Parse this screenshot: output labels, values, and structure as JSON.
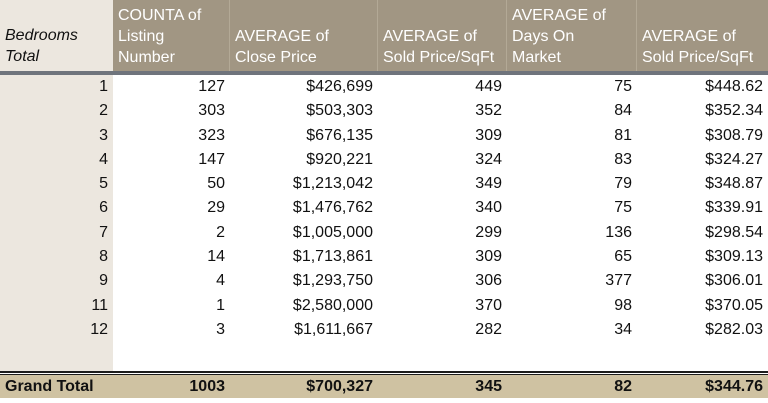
{
  "header": {
    "row_label": [
      "Bedrooms",
      "Total"
    ],
    "columns": [
      [
        "COUNTA of",
        "Listing",
        "Number"
      ],
      [
        "AVERAGE of",
        "Close Price"
      ],
      [
        "AVERAGE of",
        "Sold Price/SqFt"
      ],
      [
        "AVERAGE of",
        "Days On",
        "Market"
      ],
      [
        "AVERAGE of",
        "Sold Price/SqFt"
      ]
    ]
  },
  "rows": [
    [
      "1",
      "127",
      "$426,699",
      "449",
      "75",
      "$448.62"
    ],
    [
      "2",
      "303",
      "$503,303",
      "352",
      "84",
      "$352.34"
    ],
    [
      "3",
      "323",
      "$676,135",
      "309",
      "81",
      "$308.79"
    ],
    [
      "4",
      "147",
      "$920,221",
      "324",
      "83",
      "$324.27"
    ],
    [
      "5",
      "50",
      "$1,213,042",
      "349",
      "79",
      "$348.87"
    ],
    [
      "6",
      "29",
      "$1,476,762",
      "340",
      "75",
      "$339.91"
    ],
    [
      "7",
      "2",
      "$1,005,000",
      "299",
      "136",
      "$298.54"
    ],
    [
      "8",
      "14",
      "$1,713,861",
      "309",
      "65",
      "$309.13"
    ],
    [
      "9",
      "4",
      "$1,293,750",
      "306",
      "377",
      "$306.01"
    ],
    [
      "11",
      "1",
      "$2,580,000",
      "370",
      "98",
      "$370.05"
    ],
    [
      "12",
      "3",
      "$1,611,667",
      "282",
      "34",
      "$282.03"
    ]
  ],
  "grand_total": [
    "Grand Total",
    "1003",
    "$700,327",
    "345",
    "82",
    "$344.76"
  ],
  "colors": {
    "header_bg": "#a19683",
    "row_label_bg": "#ece7df",
    "grand_total_bg": "#cfc2a2"
  }
}
